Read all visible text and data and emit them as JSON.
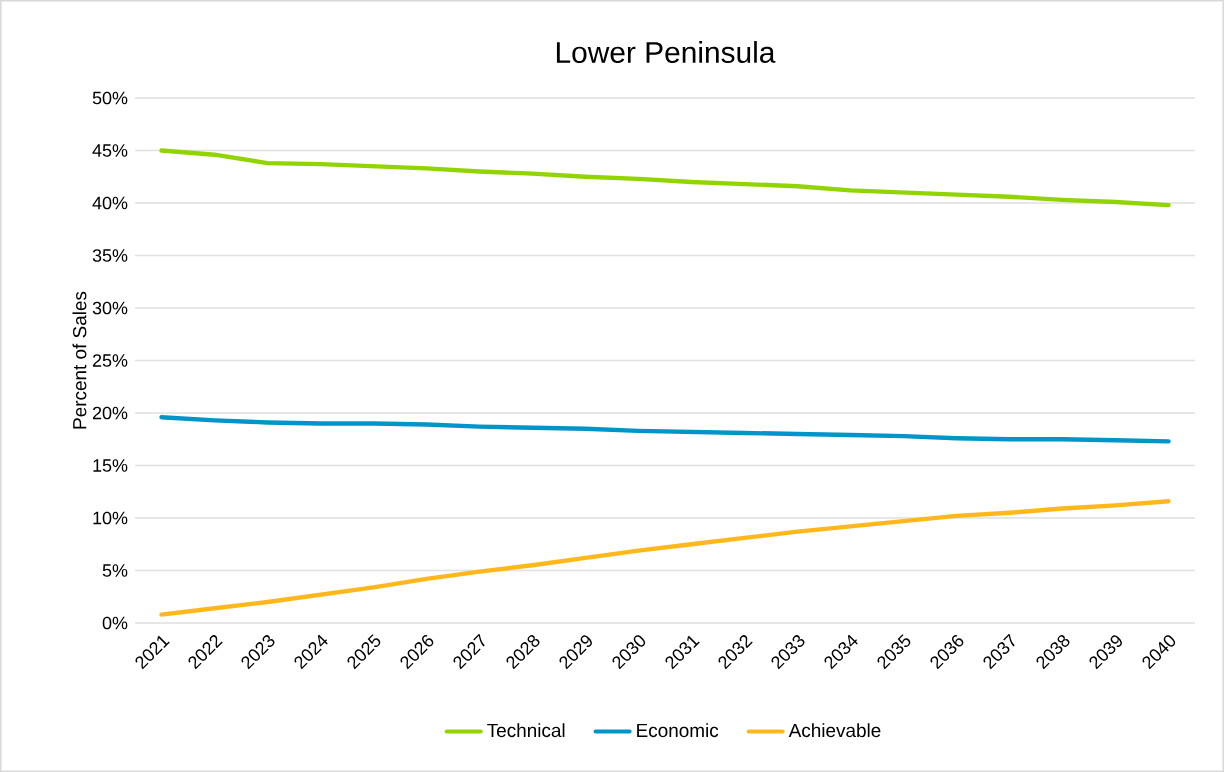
{
  "chart_data": {
    "type": "line",
    "title": "Lower Peninsula",
    "ylabel": "Percent of Sales",
    "categories": [
      "2021",
      "2022",
      "2023",
      "2024",
      "2025",
      "2026",
      "2027",
      "2028",
      "2029",
      "2030",
      "2031",
      "2032",
      "2033",
      "2034",
      "2035",
      "2036",
      "2037",
      "2038",
      "2039",
      "2040"
    ],
    "series": [
      {
        "name": "Technical",
        "color": "#92d400",
        "values": [
          45.0,
          44.6,
          43.8,
          43.7,
          43.5,
          43.3,
          43.0,
          42.8,
          42.5,
          42.3,
          42.0,
          41.8,
          41.6,
          41.2,
          41.0,
          40.8,
          40.6,
          40.3,
          40.1,
          39.8
        ]
      },
      {
        "name": "Economic",
        "color": "#0095c8",
        "values": [
          19.6,
          19.3,
          19.1,
          19.0,
          19.0,
          18.9,
          18.7,
          18.6,
          18.5,
          18.3,
          18.2,
          18.1,
          18.0,
          17.9,
          17.8,
          17.6,
          17.5,
          17.5,
          17.4,
          17.3
        ]
      },
      {
        "name": "Achievable",
        "color": "#ffb81c",
        "values": [
          0.8,
          1.4,
          2.0,
          2.7,
          3.4,
          4.2,
          4.9,
          5.5,
          6.2,
          6.9,
          7.5,
          8.1,
          8.7,
          9.2,
          9.7,
          10.2,
          10.5,
          10.9,
          11.2,
          11.6
        ]
      }
    ],
    "ylim": [
      0,
      50
    ],
    "yticks": [
      {
        "value": 0,
        "label": "0%"
      },
      {
        "value": 5,
        "label": "5%"
      },
      {
        "value": 10,
        "label": "10%"
      },
      {
        "value": 15,
        "label": "15%"
      },
      {
        "value": 20,
        "label": "20%"
      },
      {
        "value": 25,
        "label": "25%"
      },
      {
        "value": 30,
        "label": "30%"
      },
      {
        "value": 35,
        "label": "35%"
      },
      {
        "value": 40,
        "label": "40%"
      },
      {
        "value": 45,
        "label": "45%"
      },
      {
        "value": 50,
        "label": "50%"
      }
    ],
    "grid": "y",
    "legend": "bottom",
    "marker": "none",
    "line_style": "solid"
  }
}
